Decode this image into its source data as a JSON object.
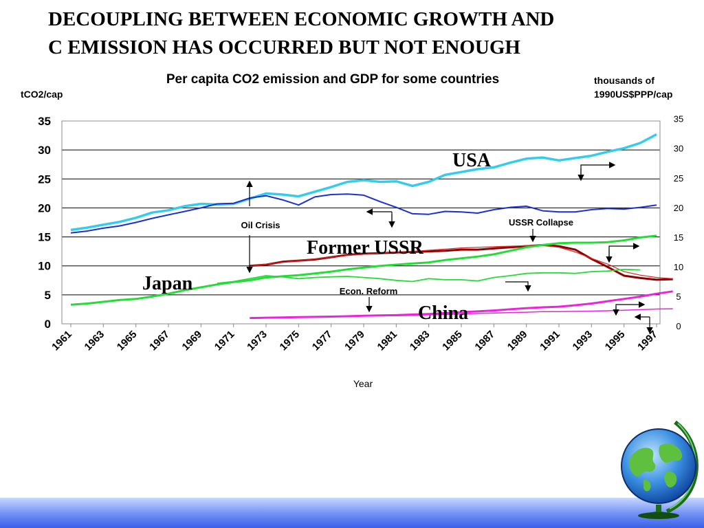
{
  "slide": {
    "title_line1": "DECOUPLING BETWEEN ECONOMIC GROWTH AND",
    "title_line2": "C EMISSION HAS OCCURRED BUT NOT ENOUGH"
  },
  "chart_data": {
    "type": "line",
    "title": "Per capita CO2 emission and GDP for some countries",
    "ylabel": "tCO2/cap",
    "y2label_line1": "thousands of",
    "y2label_line2": "1990US$PPP/cap",
    "xlabel": "Year",
    "ylim": [
      0,
      35
    ],
    "yticks": [
      "0",
      "5",
      "10",
      "15",
      "20",
      "25",
      "30",
      "35"
    ],
    "y2ticks": [
      "0",
      "5",
      "10",
      "15",
      "20",
      "25",
      "30",
      "35"
    ],
    "xticks": [
      "1961",
      "1963",
      "1965",
      "1967",
      "1969",
      "1971",
      "1973",
      "1975",
      "1977",
      "1979",
      "1981",
      "1983",
      "1985",
      "1987",
      "1989",
      "1991",
      "1993",
      "1995",
      "1997"
    ],
    "grid": true,
    "years": [
      1961,
      1962,
      1963,
      1964,
      1965,
      1966,
      1967,
      1968,
      1969,
      1970,
      1971,
      1972,
      1973,
      1974,
      1975,
      1976,
      1977,
      1978,
      1979,
      1980,
      1981,
      1982,
      1983,
      1984,
      1985,
      1986,
      1987,
      1988,
      1989,
      1990,
      1991,
      1992,
      1993,
      1994,
      1995,
      1996,
      1997
    ],
    "series": [
      {
        "key": "usa_gdp",
        "color": "#33ccee",
        "width": 3.5,
        "start": 1961,
        "values": [
          16.2,
          16.6,
          17.1,
          17.6,
          18.3,
          19.2,
          19.6,
          20.3,
          20.7,
          20.6,
          20.7,
          21.6,
          22.5,
          22.3,
          22.0,
          22.8,
          23.6,
          24.5,
          24.8,
          24.5,
          24.6,
          23.8,
          24.5,
          25.7,
          26.2,
          26.7,
          27.0,
          27.8,
          28.5,
          28.7,
          28.2,
          28.6,
          29.0,
          29.7,
          30.3,
          31.2,
          32.7
        ]
      },
      {
        "key": "usa_co2",
        "color": "#1a2fd6",
        "width": 2,
        "start": 1961,
        "values": [
          15.7,
          16.0,
          16.5,
          16.9,
          17.5,
          18.2,
          18.8,
          19.4,
          20.0,
          20.7,
          20.8,
          21.7,
          22.1,
          21.4,
          20.5,
          21.9,
          22.3,
          22.4,
          22.2,
          21.1,
          20.1,
          19.0,
          18.9,
          19.4,
          19.3,
          19.1,
          19.7,
          20.1,
          20.3,
          19.5,
          19.3,
          19.3,
          19.7,
          19.9,
          19.8,
          20.1,
          20.5
        ]
      },
      {
        "key": "ussr_co2",
        "color": "#8b0000",
        "width": 3,
        "start": 1972,
        "values": [
          10.0,
          10.2,
          10.7,
          10.9,
          11.1,
          11.5,
          11.9,
          12.1,
          12.2,
          12.3,
          12.4,
          12.5,
          12.6,
          12.8,
          12.8,
          13.0,
          13.2,
          13.4,
          13.6,
          13.4,
          12.8,
          11.2,
          9.8,
          8.3,
          7.9,
          7.6,
          7.7
        ]
      },
      {
        "key": "ussr_gdp",
        "color": "#dd2222",
        "width": 1.2,
        "start": 1972,
        "values": [
          9.9,
          10.3,
          10.6,
          10.9,
          11.2,
          11.5,
          11.8,
          12.0,
          12.2,
          12.4,
          12.5,
          12.7,
          12.9,
          13.1,
          13.2,
          13.3,
          13.4,
          13.5,
          13.5,
          13.2,
          12.4,
          11.3,
          10.3,
          9.0,
          8.4,
          8.0,
          7.8
        ]
      },
      {
        "key": "japan_gdp",
        "color": "#22dd33",
        "width": 3,
        "start": 1961,
        "values": [
          3.3,
          3.5,
          3.8,
          4.1,
          4.3,
          4.7,
          5.2,
          5.8,
          6.3,
          6.8,
          7.2,
          7.5,
          8.0,
          8.2,
          8.4,
          8.7,
          9.0,
          9.4,
          9.7,
          10.0,
          10.2,
          10.4,
          10.6,
          11.0,
          11.3,
          11.6,
          12.0,
          12.6,
          13.2,
          13.6,
          13.9,
          14.0,
          14.0,
          14.1,
          14.4,
          14.9,
          15.2
        ]
      },
      {
        "key": "japan_co2",
        "color": "#22dd33",
        "width": 1.8,
        "start": 1970,
        "values": [
          7.0,
          7.3,
          7.8,
          8.3,
          8.1,
          7.8,
          8.0,
          8.1,
          8.2,
          8.0,
          7.8,
          7.5,
          7.3,
          7.8,
          7.6,
          7.6,
          7.4,
          8.0,
          8.3,
          8.7,
          8.8,
          8.8,
          8.7,
          9.0,
          9.1,
          9.4,
          9.3
        ]
      },
      {
        "key": "china_gdp",
        "color": "#ee22dd",
        "width": 3,
        "start": 1972,
        "values": [
          1.0,
          1.05,
          1.1,
          1.15,
          1.2,
          1.25,
          1.3,
          1.4,
          1.45,
          1.5,
          1.6,
          1.7,
          1.85,
          2.0,
          2.15,
          2.3,
          2.5,
          2.7,
          2.85,
          2.95,
          3.2,
          3.5,
          3.9,
          4.3,
          4.7,
          5.2,
          5.6
        ]
      },
      {
        "key": "china_co2",
        "color": "#ee22dd",
        "width": 1.5,
        "start": 1972,
        "values": [
          1.0,
          1.05,
          1.1,
          1.15,
          1.2,
          1.2,
          1.25,
          1.35,
          1.4,
          1.4,
          1.45,
          1.55,
          1.6,
          1.7,
          1.8,
          1.85,
          1.95,
          2.0,
          2.1,
          2.1,
          2.15,
          2.2,
          2.25,
          2.35,
          2.45,
          2.55,
          2.6
        ]
      }
    ],
    "country_labels": {
      "usa": "USA",
      "ussr": "Former USSR",
      "japan": "Japan",
      "china": "China"
    },
    "annotations": {
      "oil_crisis": "Oil Crisis",
      "ussr_collapse": "USSR Collapse",
      "econ_reform": "Econ. Reform"
    }
  }
}
